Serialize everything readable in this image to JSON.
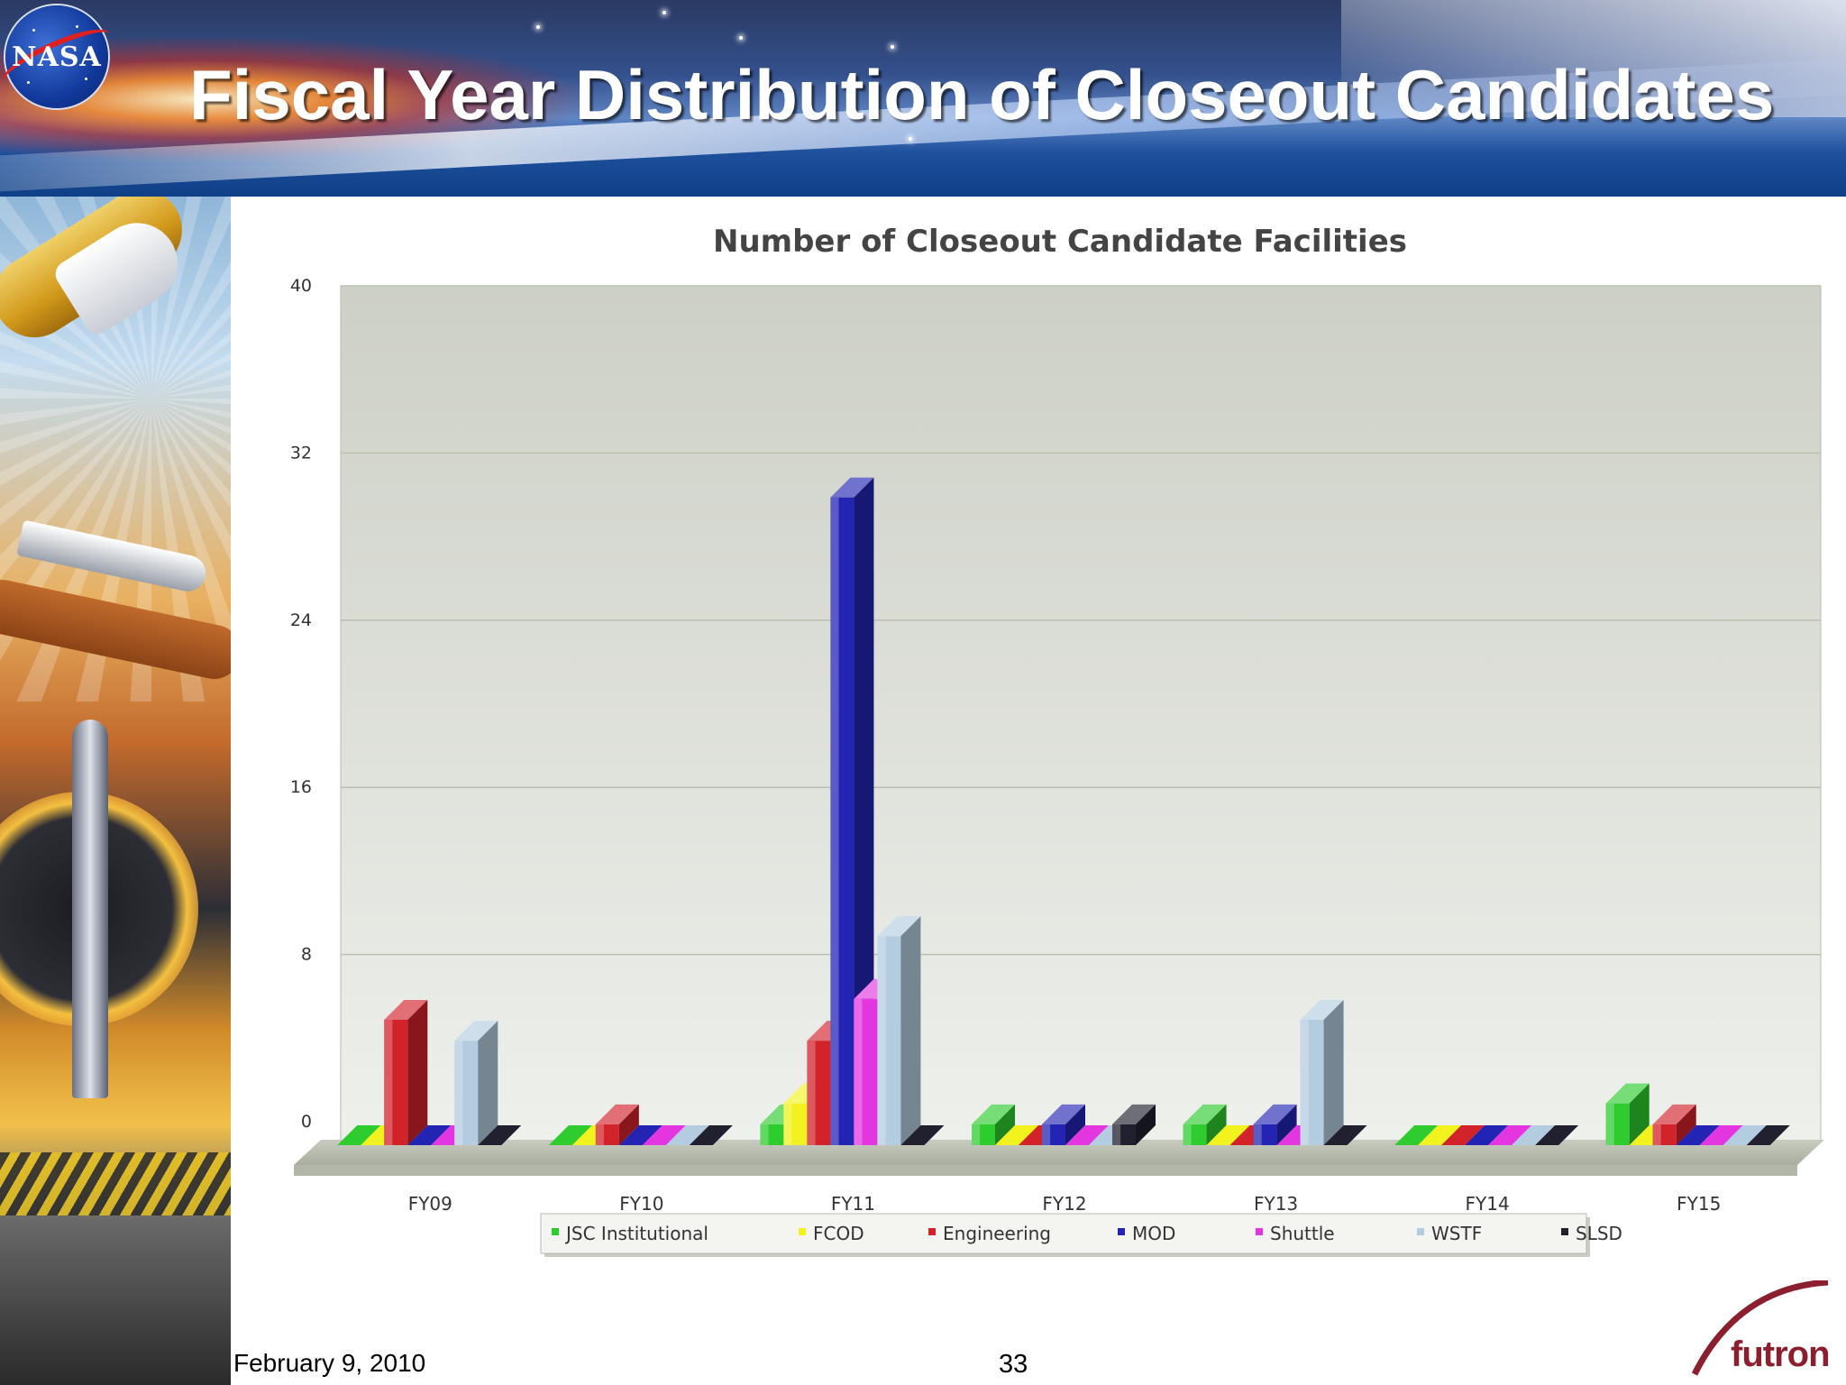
{
  "slide": {
    "title": "Fiscal Year Distribution of Closeout Candidates",
    "footer_date": "February 9, 2010",
    "page_number": "33",
    "logo_left": "NASA",
    "logo_right": "futron"
  },
  "colors": {
    "JSC Institutional": "#2ecc2e",
    "FCOD": "#f2f21e",
    "Engineering": "#d2222a",
    "MOD": "#2424b4",
    "Shuttle": "#e436e0",
    "WSTF": "#b4cce0",
    "SLSD": "#20202e"
  },
  "chart_data": {
    "type": "bar",
    "title": "Number of Closeout Candidate Facilities",
    "categories": [
      "FY09",
      "FY10",
      "FY11",
      "FY12",
      "FY13",
      "FY14",
      "FY15"
    ],
    "series": [
      {
        "name": "JSC Institutional",
        "values": [
          0,
          0,
          1,
          1,
          1,
          0,
          2
        ]
      },
      {
        "name": "FCOD",
        "values": [
          0,
          0,
          2,
          0,
          0,
          0,
          0
        ]
      },
      {
        "name": "Engineering",
        "values": [
          6,
          1,
          5,
          0,
          0,
          0,
          1
        ]
      },
      {
        "name": "MOD",
        "values": [
          0,
          0,
          31,
          1,
          1,
          0,
          0
        ]
      },
      {
        "name": "Shuttle",
        "values": [
          0,
          0,
          7,
          0,
          0,
          0,
          0
        ]
      },
      {
        "name": "WSTF",
        "values": [
          5,
          0,
          10,
          0,
          6,
          0,
          0
        ]
      },
      {
        "name": "SLSD",
        "values": [
          0,
          0,
          0,
          1,
          0,
          0,
          0
        ]
      }
    ],
    "yticks": [
      "0",
      "8",
      "16",
      "24",
      "32",
      "40"
    ],
    "ylim": [
      0,
      40
    ],
    "xlabel": "",
    "ylabel": "",
    "grid": true,
    "legend_position": "bottom",
    "style": "3d"
  }
}
